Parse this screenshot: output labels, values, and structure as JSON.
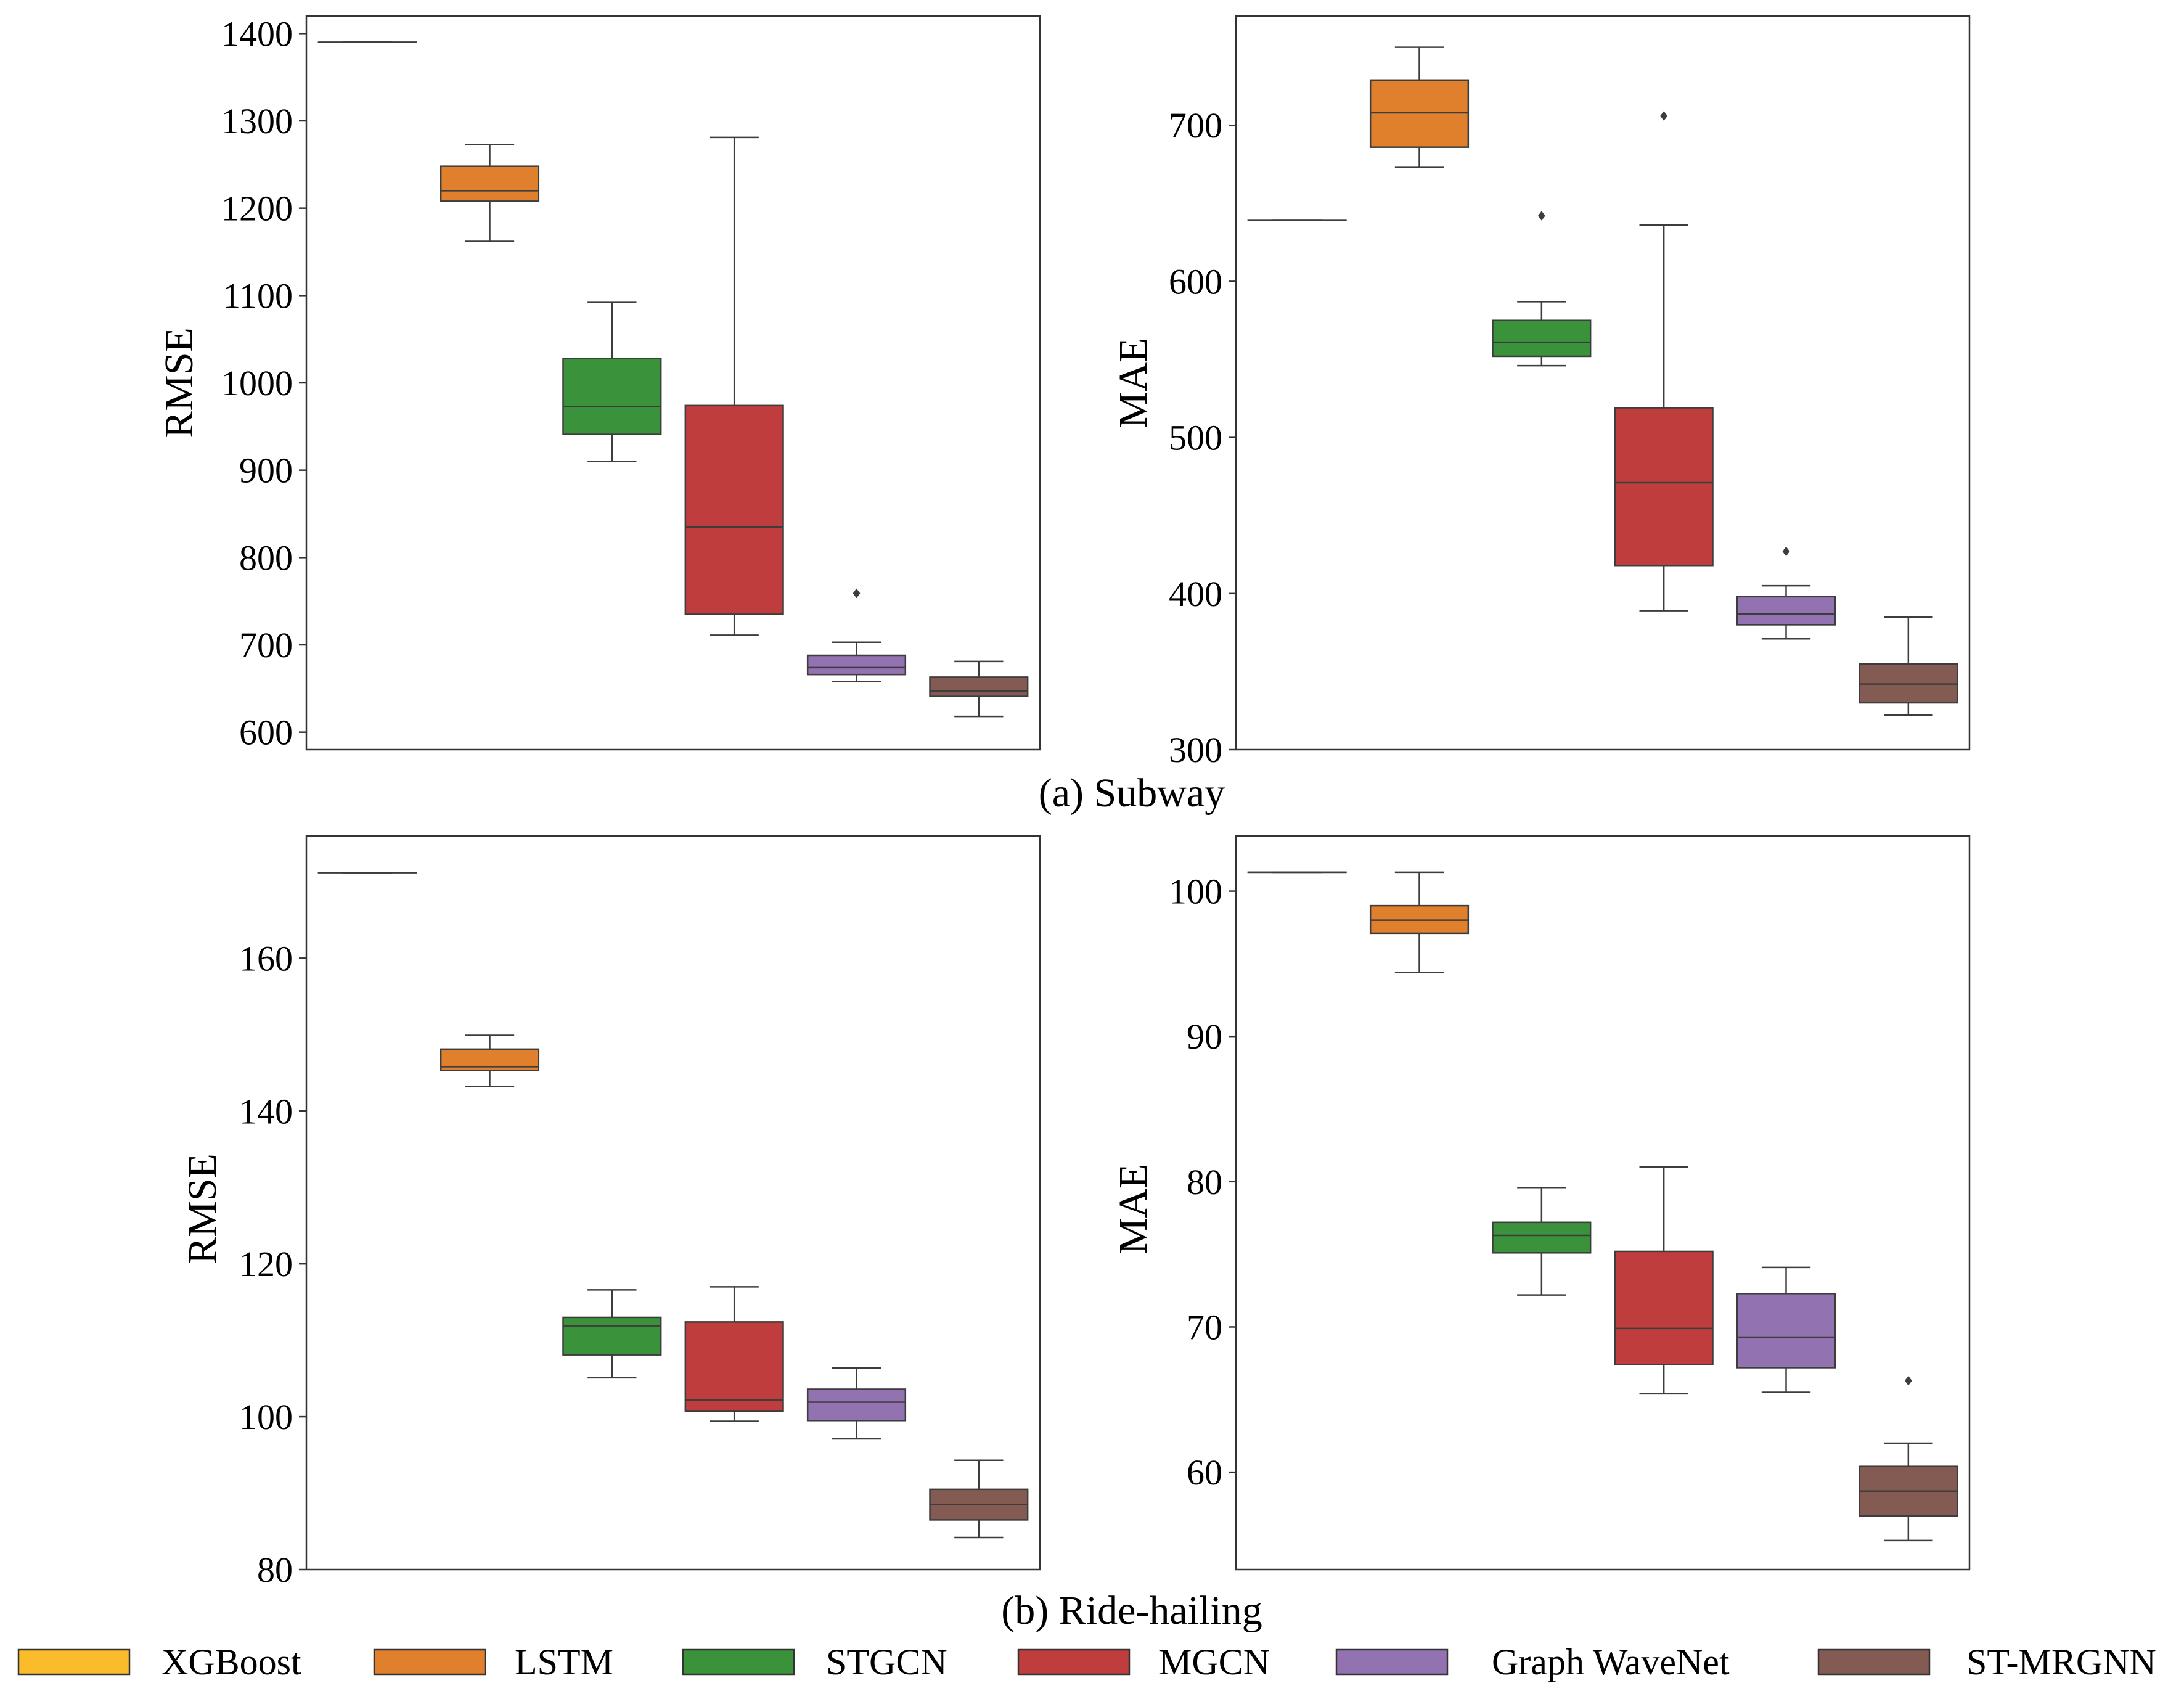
{
  "figure_captions": {
    "top": "(a) Subway",
    "bottom": "(b) Ride-hailing"
  },
  "legend": [
    {
      "label": "XGBoost",
      "color": "#FBBC2B"
    },
    {
      "label": "LSTM",
      "color": "#E07F2C"
    },
    {
      "label": "STGCN",
      "color": "#3A923A"
    },
    {
      "label": "MGCN",
      "color": "#C03D3E"
    },
    {
      "label": "Graph WaveNet",
      "color": "#9372B2"
    },
    {
      "label": "ST-MRGNN",
      "color": "#845B53"
    }
  ],
  "chart_data": [
    {
      "type": "box",
      "panel": "top-left",
      "title": "",
      "xlabel": "",
      "ylabel": "RMSE",
      "ylim": [
        580,
        1420
      ],
      "yticks": [
        600,
        700,
        800,
        900,
        1000,
        1100,
        1200,
        1300,
        1400
      ],
      "series": [
        {
          "name": "XGBoost",
          "min": 1390,
          "q1": 1390,
          "median": 1390,
          "q3": 1390,
          "max": 1390,
          "outliers": []
        },
        {
          "name": "LSTM",
          "min": 1162,
          "q1": 1208,
          "median": 1220,
          "q3": 1248,
          "max": 1273,
          "outliers": []
        },
        {
          "name": "STGCN",
          "min": 910,
          "q1": 941,
          "median": 973,
          "q3": 1028,
          "max": 1092,
          "outliers": []
        },
        {
          "name": "MGCN",
          "min": 711,
          "q1": 735,
          "median": 835,
          "q3": 974,
          "max": 1281,
          "outliers": []
        },
        {
          "name": "Graph WaveNet",
          "min": 658,
          "q1": 666,
          "median": 674,
          "q3": 688,
          "max": 703,
          "outliers": [
            759
          ]
        },
        {
          "name": "ST-MRGNN",
          "min": 618,
          "q1": 641,
          "median": 647,
          "q3": 663,
          "max": 681,
          "outliers": []
        }
      ]
    },
    {
      "type": "box",
      "panel": "top-right",
      "title": "",
      "xlabel": "",
      "ylabel": "MAE",
      "ylim": [
        300,
        770
      ],
      "yticks": [
        300,
        400,
        500,
        600,
        700
      ],
      "series": [
        {
          "name": "XGBoost",
          "min": 639,
          "q1": 639,
          "median": 639,
          "q3": 639,
          "max": 639,
          "outliers": []
        },
        {
          "name": "LSTM",
          "min": 673,
          "q1": 686,
          "median": 708,
          "q3": 729,
          "max": 750,
          "outliers": []
        },
        {
          "name": "STGCN",
          "min": 546,
          "q1": 552,
          "median": 561,
          "q3": 575,
          "max": 587,
          "outliers": [
            642
          ]
        },
        {
          "name": "MGCN",
          "min": 389,
          "q1": 418,
          "median": 471,
          "q3": 519,
          "max": 636,
          "outliers": [
            706
          ]
        },
        {
          "name": "Graph WaveNet",
          "min": 371,
          "q1": 380,
          "median": 387,
          "q3": 398,
          "max": 405,
          "outliers": [
            427
          ]
        },
        {
          "name": "ST-MRGNN",
          "min": 322,
          "q1": 330,
          "median": 342,
          "q3": 355,
          "max": 385,
          "outliers": []
        }
      ]
    },
    {
      "type": "box",
      "panel": "bottom-left",
      "title": "",
      "xlabel": "",
      "ylabel": "RMSE",
      "ylim": [
        80,
        176
      ],
      "yticks": [
        80,
        100,
        120,
        140,
        160
      ],
      "series": [
        {
          "name": "XGBoost",
          "min": 171.2,
          "q1": 171.2,
          "median": 171.2,
          "q3": 171.2,
          "max": 171.2,
          "outliers": []
        },
        {
          "name": "LSTM",
          "min": 143.2,
          "q1": 145.3,
          "median": 145.8,
          "q3": 148.1,
          "max": 149.9,
          "outliers": []
        },
        {
          "name": "STGCN",
          "min": 105.1,
          "q1": 108.1,
          "median": 111.9,
          "q3": 113.0,
          "max": 116.6,
          "outliers": []
        },
        {
          "name": "MGCN",
          "min": 99.4,
          "q1": 100.7,
          "median": 102.2,
          "q3": 112.4,
          "max": 117.0,
          "outliers": []
        },
        {
          "name": "Graph WaveNet",
          "min": 97.1,
          "q1": 99.5,
          "median": 101.9,
          "q3": 103.6,
          "max": 106.4,
          "outliers": []
        },
        {
          "name": "ST-MRGNN",
          "min": 84.2,
          "q1": 86.5,
          "median": 88.5,
          "q3": 90.5,
          "max": 94.3,
          "outliers": []
        }
      ]
    },
    {
      "type": "box",
      "panel": "bottom-right",
      "title": "",
      "xlabel": "",
      "ylabel": "MAE",
      "ylim": [
        53.3,
        103.8
      ],
      "yticks": [
        60,
        70,
        80,
        90,
        100
      ],
      "series": [
        {
          "name": "XGBoost",
          "min": 101.3,
          "q1": 101.3,
          "median": 101.3,
          "q3": 101.3,
          "max": 101.3,
          "outliers": []
        },
        {
          "name": "LSTM",
          "min": 94.4,
          "q1": 97.1,
          "median": 98.0,
          "q3": 99.0,
          "max": 101.3,
          "outliers": []
        },
        {
          "name": "STGCN",
          "min": 72.2,
          "q1": 75.1,
          "median": 76.3,
          "q3": 77.2,
          "max": 79.6,
          "outliers": []
        },
        {
          "name": "MGCN",
          "min": 65.4,
          "q1": 67.4,
          "median": 69.9,
          "q3": 75.2,
          "max": 81.0,
          "outliers": []
        },
        {
          "name": "Graph WaveNet",
          "min": 65.5,
          "q1": 67.2,
          "median": 69.3,
          "q3": 72.3,
          "max": 74.1,
          "outliers": []
        },
        {
          "name": "ST-MRGNN",
          "min": 55.3,
          "q1": 57.0,
          "median": 58.7,
          "q3": 60.4,
          "max": 62.0,
          "outliers": [
            66.3
          ]
        }
      ]
    }
  ]
}
